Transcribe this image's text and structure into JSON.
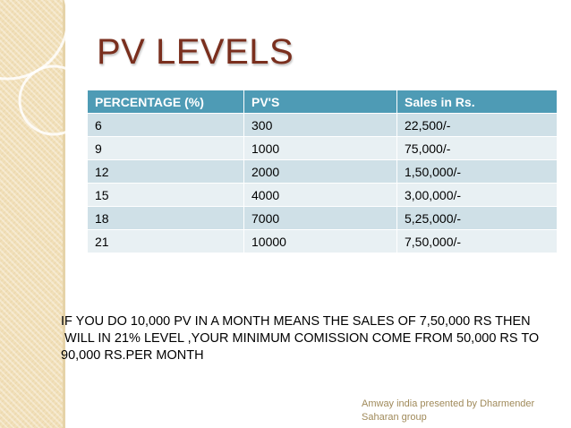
{
  "title": "PV LEVELS",
  "table": {
    "headers": [
      "PERCENTAGE (%)",
      "PV'S",
      "Sales in Rs."
    ],
    "rows": [
      [
        "6",
        "300",
        "22,500/-"
      ],
      [
        "9",
        "1000",
        "75,000/-"
      ],
      [
        "12",
        "2000",
        "1,50,000/-"
      ],
      [
        "15",
        "4000",
        "3,00,000/-"
      ],
      [
        "18",
        "7000",
        "5,25,000/-"
      ],
      [
        "21",
        "10000",
        "7,50,000/-"
      ]
    ]
  },
  "note": {
    "lines": [
      "IF YOU DO 10,000 PV IN A MONTH MEANS THE SALES OF 7,50,000 RS  THEN",
      " WILL IN 21% LEVEL ,YOUR MINIMUM COMISSION COME FROM 50,000 RS TO",
      "90,000 RS.PER MONTH"
    ]
  },
  "footer": {
    "line1": "Amway india presented by Dharmender",
    "line2": "Saharan group"
  }
}
